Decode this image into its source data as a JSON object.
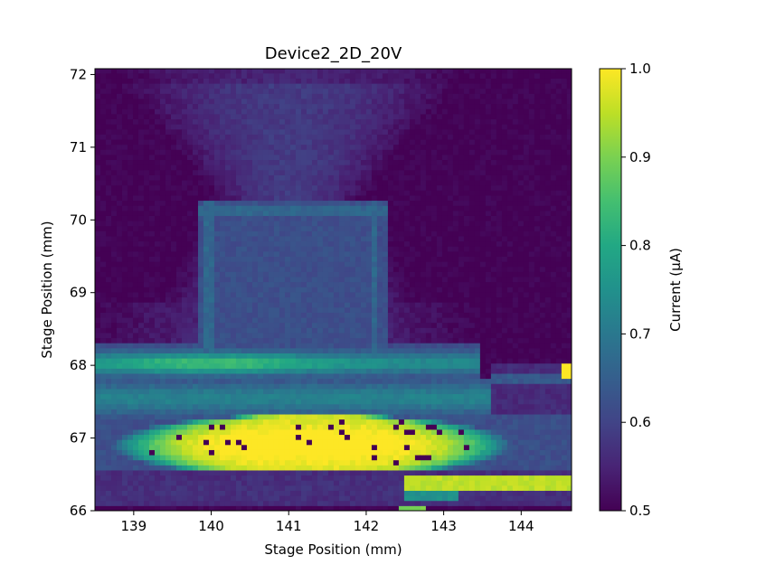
{
  "chart_data": {
    "type": "heatmap",
    "title": "Device2_2D_20V",
    "xlabel": "Stage Position (mm)",
    "ylabel": "Stage Position (mm)",
    "xlim": [
      138.5,
      144.65
    ],
    "ylim": [
      66.0,
      72.08
    ],
    "x_ticks": [
      139,
      140,
      141,
      142,
      143,
      144
    ],
    "y_ticks": [
      66,
      67,
      68,
      69,
      70,
      71,
      72
    ],
    "x_tick_labels": [
      "139",
      "140",
      "141",
      "142",
      "143",
      "144"
    ],
    "y_tick_labels": [
      "66",
      "67",
      "68",
      "69",
      "70",
      "71",
      "72"
    ],
    "colorbar": {
      "label": "Current (µA)",
      "colormap": "viridis",
      "vmin": 0.5,
      "vmax": 1.0,
      "ticks": [
        0.5,
        0.6,
        0.7,
        0.8,
        0.9,
        1.0
      ],
      "tick_labels": [
        "0.5",
        "0.6",
        "0.7",
        "0.8",
        "0.9",
        "1.0"
      ]
    },
    "grid": false,
    "grid_resolution_mm": 0.07,
    "field_description": {
      "background_current_uA": 0.5,
      "upper_funnel_peak_uA": 0.6,
      "inner_square": {
        "x": [
          139.8,
          142.25
        ],
        "y": [
          67.95,
          70.3
        ],
        "current_uA": 0.62,
        "border_current_uA": 0.66
      },
      "upper_band": {
        "y": [
          67.85,
          68.25
        ],
        "peak_uA": 0.86
      },
      "hot_band": {
        "x": [
          139.0,
          143.6
        ],
        "y": [
          66.6,
          67.25
        ],
        "peak_uA": 1.0
      },
      "lower_right_strip": {
        "x": [
          142.5,
          144.6
        ],
        "y": [
          66.3,
          66.45
        ],
        "current_uA": 0.95
      },
      "dead_pixels_uA": 0.5,
      "hot_pixels_uA": 1.0
    }
  }
}
